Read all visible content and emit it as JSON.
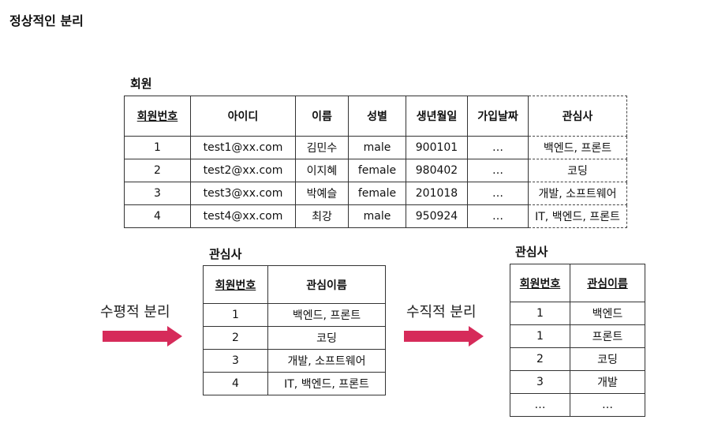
{
  "page_title": "정상적인 분리",
  "member_table": {
    "caption": "회원",
    "headers": [
      "회원번호",
      "아이디",
      "이름",
      "성별",
      "생년월일",
      "가입날짜",
      "관심사"
    ],
    "rows": [
      [
        "1",
        "test1@xx.com",
        "김민수",
        "male",
        "900101",
        "…",
        "백엔드, 프론트"
      ],
      [
        "2",
        "test2@xx.com",
        "이지혜",
        "female",
        "980402",
        "…",
        "코딩"
      ],
      [
        "3",
        "test3@xx.com",
        "박예슬",
        "female",
        "201018",
        "…",
        "개발, 소프트웨어"
      ],
      [
        "4",
        "test4@xx.com",
        "최강",
        "male",
        "950924",
        "…",
        "IT, 백엔드, 프론트"
      ]
    ]
  },
  "horizontal": {
    "label": "수평적 분리",
    "caption": "관심사",
    "headers": [
      "회원번호",
      "관심이름"
    ],
    "rows": [
      [
        "1",
        "백엔드, 프론트"
      ],
      [
        "2",
        "코딩"
      ],
      [
        "3",
        "개발, 소프트웨어"
      ],
      [
        "4",
        "IT, 백엔드, 프론트"
      ]
    ]
  },
  "vertical": {
    "label": "수직적 분리",
    "caption": "관심사",
    "headers": [
      "회원번호",
      "관심이름"
    ],
    "rows": [
      [
        "1",
        "백엔드"
      ],
      [
        "1",
        "프론트"
      ],
      [
        "2",
        "코딩"
      ],
      [
        "3",
        "개발"
      ],
      [
        "…",
        "…"
      ]
    ]
  },
  "colors": {
    "arrow": "#d62b5a"
  }
}
